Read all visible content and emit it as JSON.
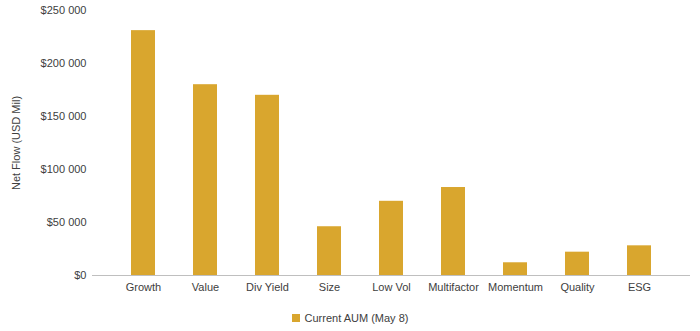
{
  "chart_data": {
    "type": "bar",
    "ylabel": "Net Flow (USD Mil)",
    "categories": [
      "Growth",
      "Value",
      "Div Yield",
      "Size",
      "Low Vol",
      "Multifactor",
      "Momentum",
      "Quality",
      "ESG"
    ],
    "series": [
      {
        "name": "Current AUM (May 8)",
        "color": "#d9a62e",
        "values": [
          231000,
          180000,
          170000,
          46000,
          70000,
          83000,
          12000,
          22000,
          28000
        ]
      }
    ],
    "ylim": [
      0,
      250000
    ],
    "yticks": [
      {
        "value": 0,
        "label": "$0"
      },
      {
        "value": 50000,
        "label": "$50 000"
      },
      {
        "value": 100000,
        "label": "$100 000"
      },
      {
        "value": 150000,
        "label": "$150 000"
      },
      {
        "value": 200000,
        "label": "$200 000"
      },
      {
        "value": 250000,
        "label": "$250 000"
      }
    ],
    "grid": false,
    "legend": "bottom"
  }
}
